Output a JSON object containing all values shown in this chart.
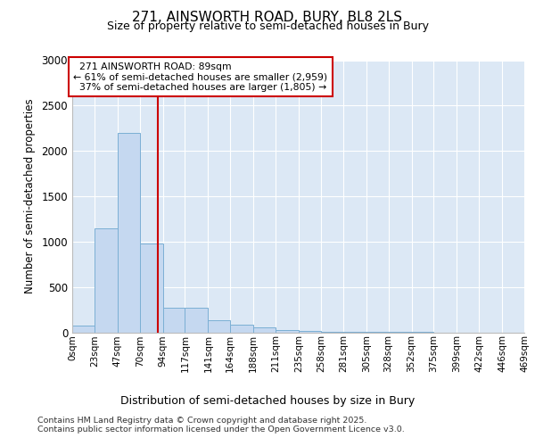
{
  "title_line1": "271, AINSWORTH ROAD, BURY, BL8 2LS",
  "title_line2": "Size of property relative to semi-detached houses in Bury",
  "xlabel": "Distribution of semi-detached houses by size in Bury",
  "ylabel": "Number of semi-detached properties",
  "footer_line1": "Contains HM Land Registry data © Crown copyright and database right 2025.",
  "footer_line2": "Contains public sector information licensed under the Open Government Licence v3.0.",
  "property_label": "271 AINSWORTH ROAD: 89sqm",
  "smaller_pct": 61,
  "smaller_count": 2959,
  "larger_pct": 37,
  "larger_count": 1805,
  "bin_edges": [
    0,
    23,
    47,
    70,
    94,
    117,
    141,
    164,
    188,
    211,
    235,
    258,
    281,
    305,
    328,
    352,
    375,
    399,
    422,
    446,
    469
  ],
  "bar_heights": [
    75,
    1150,
    2200,
    980,
    270,
    270,
    130,
    80,
    55,
    20,
    10,
    5,
    3,
    2,
    1,
    1,
    0,
    0,
    0,
    0
  ],
  "bar_color": "#c5d8f0",
  "bar_edge_color": "#7bafd4",
  "vline_color": "#cc0000",
  "vline_x": 89,
  "annotation_box_edge_color": "#cc0000",
  "background_color": "#dce8f5",
  "ylim": [
    0,
    3000
  ],
  "yticks": [
    0,
    500,
    1000,
    1500,
    2000,
    2500,
    3000
  ],
  "tick_labels": [
    "0sqm",
    "23sqm",
    "47sqm",
    "70sqm",
    "94sqm",
    "117sqm",
    "141sqm",
    "164sqm",
    "188sqm",
    "211sqm",
    "235sqm",
    "258sqm",
    "281sqm",
    "305sqm",
    "328sqm",
    "352sqm",
    "375sqm",
    "399sqm",
    "422sqm",
    "446sqm",
    "469sqm"
  ]
}
